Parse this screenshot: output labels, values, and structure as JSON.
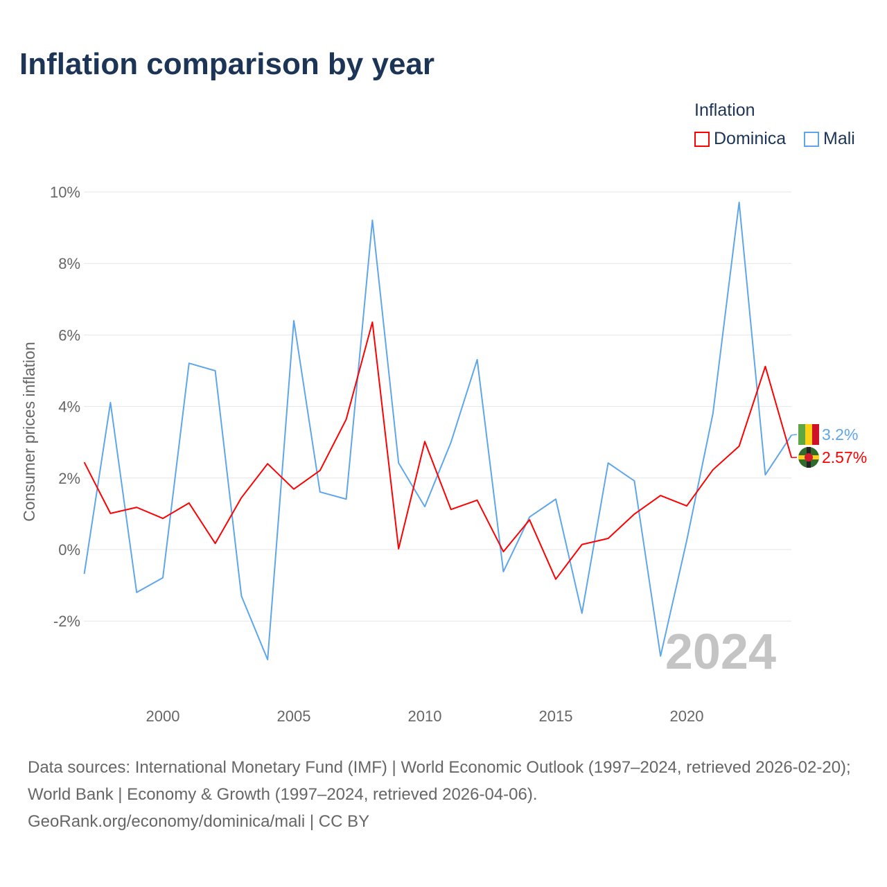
{
  "title": "Inflation comparison by year",
  "legend": {
    "title": "Inflation",
    "items": [
      {
        "name": "Dominica",
        "color": "#ff0000"
      },
      {
        "name": "Mali",
        "color": "#5ea6ec"
      }
    ]
  },
  "watermark_year": "2024",
  "source_lines": [
    "Data sources: International Monetary Fund (IMF) | World Economic Outlook (1997–2024, retrieved 2026-02-20); World Bank | Economy & Growth (1997–2024, retrieved 2026-04-06).",
    "GeoRank.org/economy/dominica/mali | CC BY"
  ],
  "chart_data": {
    "type": "line",
    "title": "Inflation comparison by year",
    "ylabel": "Consumer prices inflation",
    "xlabel": "",
    "xlim": [
      1997,
      2024
    ],
    "ylim": [
      -4,
      10.5
    ],
    "yticks": [
      -2,
      0,
      2,
      4,
      6,
      8,
      10
    ],
    "ytick_labels": [
      "-2%",
      "0%",
      "2%",
      "4%",
      "6%",
      "8%",
      "10%"
    ],
    "xticks": [
      2000,
      2005,
      2010,
      2015,
      2020
    ],
    "xtick_labels": [
      "2000",
      "2005",
      "2010",
      "2015",
      "2020"
    ],
    "grid": true,
    "legend_position": "top-right",
    "x": [
      1997,
      1998,
      1999,
      2000,
      2001,
      2002,
      2003,
      2004,
      2005,
      2006,
      2007,
      2008,
      2009,
      2010,
      2011,
      2012,
      2013,
      2014,
      2015,
      2016,
      2017,
      2018,
      2019,
      2020,
      2021,
      2022,
      2023,
      2024
    ],
    "series": [
      {
        "name": "Dominica",
        "color": "#ff0000",
        "end_label": "2.57%",
        "values": [
          2.44,
          1.01,
          1.18,
          0.87,
          1.3,
          0.17,
          1.45,
          2.4,
          1.69,
          2.21,
          3.64,
          6.36,
          0.02,
          3.02,
          1.12,
          1.38,
          -0.06,
          0.83,
          -0.83,
          0.14,
          0.31,
          0.99,
          1.51,
          1.22,
          2.23,
          2.89,
          5.12,
          2.57
        ]
      },
      {
        "name": "Mali",
        "color": "#5ea6ec",
        "end_label": "3.2%",
        "values": [
          -0.68,
          4.11,
          -1.2,
          -0.79,
          5.21,
          5.0,
          -1.3,
          -3.08,
          6.4,
          1.61,
          1.41,
          9.21,
          2.42,
          1.2,
          3.0,
          5.31,
          -0.62,
          0.91,
          1.41,
          -1.78,
          2.42,
          1.92,
          -2.98,
          0.25,
          3.8,
          9.71,
          2.09,
          3.2
        ]
      }
    ]
  }
}
